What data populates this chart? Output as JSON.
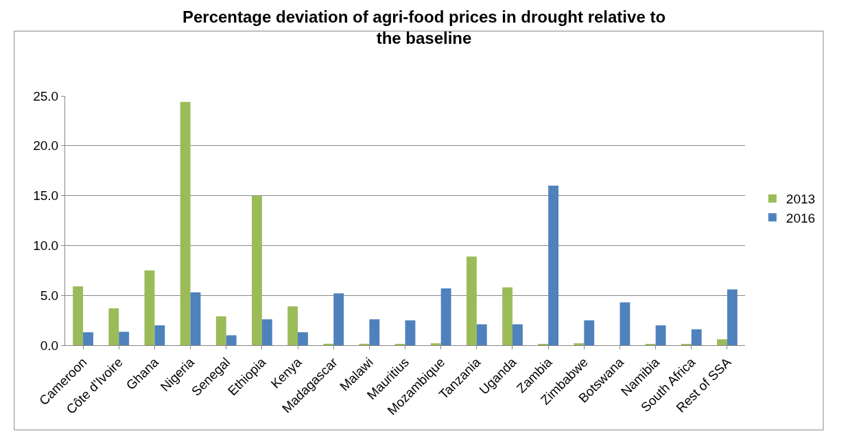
{
  "chart_data": {
    "type": "bar",
    "title": "Percentage deviation of agri-food prices in drought relative to the baseline",
    "categories": [
      "Cameroon",
      "Côte d’Ivoire",
      "Ghana",
      "Nigeria",
      "Senegal",
      "Ethiopia",
      "Kenya",
      "Madagascar",
      "Malawi",
      "Mauritius",
      "Mozambique",
      "Tanzania",
      "Uganda",
      "Zambia",
      "Zimbabwe",
      "Botswana",
      "Namibia",
      "South Africa",
      "Rest of SSA"
    ],
    "series": [
      {
        "name": "2013",
        "color": "#9bbb59",
        "values": [
          5.9,
          3.7,
          7.5,
          24.4,
          2.9,
          15.0,
          3.9,
          0.15,
          0.15,
          0.1,
          0.2,
          8.9,
          5.8,
          0.1,
          0.2,
          0,
          0.1,
          0.1,
          0.6
        ]
      },
      {
        "name": "2016",
        "color": "#4f81bd",
        "values": [
          1.3,
          1.35,
          2.0,
          5.3,
          1.0,
          2.6,
          1.3,
          5.2,
          2.6,
          2.5,
          5.7,
          2.1,
          2.1,
          16.0,
          2.5,
          4.3,
          2.0,
          1.6,
          5.6
        ]
      }
    ],
    "ylim": [
      0,
      25
    ],
    "yticks": [
      {
        "value": 0,
        "label": "0.0"
      },
      {
        "value": 5,
        "label": "5.0"
      },
      {
        "value": 10,
        "label": "10.0"
      },
      {
        "value": 15,
        "label": "15.0"
      },
      {
        "value": 20,
        "label": "20.0"
      },
      {
        "value": 25,
        "label": "25.0"
      }
    ],
    "grid": "y",
    "legend": "right"
  }
}
